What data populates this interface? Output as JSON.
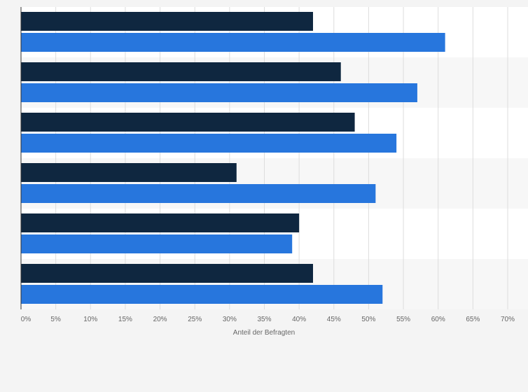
{
  "chart_data": {
    "type": "bar",
    "orientation": "horizontal",
    "title": "",
    "xlabel": "Anteil der Befragten",
    "ylabel": "",
    "xlim": [
      0,
      70
    ],
    "x_ticks": [
      0,
      5,
      10,
      15,
      20,
      25,
      30,
      35,
      40,
      45,
      50,
      55,
      60,
      65,
      70
    ],
    "x_tick_labels": [
      "0%",
      "5%",
      "10%",
      "15%",
      "20%",
      "25%",
      "30%",
      "35%",
      "40%",
      "45%",
      "50%",
      "55%",
      "60%",
      "65%",
      "70%"
    ],
    "categories": [
      "",
      "",
      "",
      "",
      "",
      ""
    ],
    "series": [
      {
        "color": "#0f2740",
        "values": [
          42,
          46,
          48,
          31,
          40,
          42
        ]
      },
      {
        "color": "#2776dd",
        "values": [
          61,
          57,
          54,
          51,
          39,
          52
        ]
      }
    ],
    "grid": "vertical",
    "legend": "none",
    "colors": {
      "plot_band_light": "#ffffff",
      "plot_band_alt": "#f7f7f7",
      "gridline": "#dddddd",
      "axis": "#333333",
      "text": "#666666"
    }
  }
}
